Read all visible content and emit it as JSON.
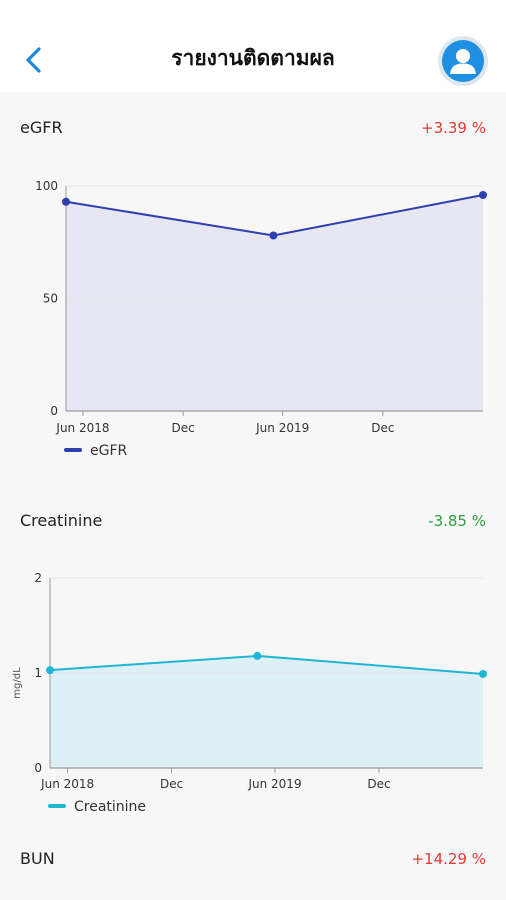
{
  "header": {
    "title": "รายงานติดตามผล",
    "back_icon": "chevron-left-icon",
    "profile_icon": "user-icon"
  },
  "sections": [
    {
      "title": "eGFR",
      "change": "+3.39 %",
      "trend": "up",
      "color": "#e53935"
    },
    {
      "title": "Creatinine",
      "change": "-3.85 %",
      "trend": "down",
      "color": "#2e9e3e"
    },
    {
      "title": "BUN",
      "change": "+14.29 %",
      "trend": "up",
      "color": "#e53935"
    }
  ],
  "chart_data": [
    {
      "type": "area",
      "x_ticks": [
        "Jun 2018",
        "Dec",
        "Jun 2019",
        "Dec"
      ],
      "x_range": [
        "2018-05-01",
        "2020-06-01"
      ],
      "ylim": [
        0,
        100
      ],
      "y_ticks": [
        0,
        50,
        100
      ],
      "ylabel": "",
      "grid": true,
      "legend_position": "bottom-left",
      "series": [
        {
          "name": "eGFR",
          "color": "#2f3fae",
          "fill": "#e7e7f3",
          "points": [
            {
              "x": "2018-05-01",
              "y": 93
            },
            {
              "x": "2019-05-15",
              "y": 78
            },
            {
              "x": "2020-06-01",
              "y": 96
            }
          ]
        }
      ]
    },
    {
      "type": "area",
      "x_ticks": [
        "Jun 2018",
        "Dec",
        "Jun 2019",
        "Dec"
      ],
      "x_range": [
        "2018-05-01",
        "2020-06-01"
      ],
      "ylim": [
        0,
        2
      ],
      "y_ticks": [
        0,
        1,
        2
      ],
      "ylabel": "mg/dL",
      "grid": true,
      "legend_position": "bottom-left",
      "series": [
        {
          "name": "Creatinine",
          "color": "#1fb6d3",
          "fill": "#def0f6",
          "points": [
            {
              "x": "2018-05-01",
              "y": 1.03
            },
            {
              "x": "2019-05-01",
              "y": 1.18
            },
            {
              "x": "2020-06-01",
              "y": 0.99
            }
          ]
        }
      ]
    }
  ]
}
